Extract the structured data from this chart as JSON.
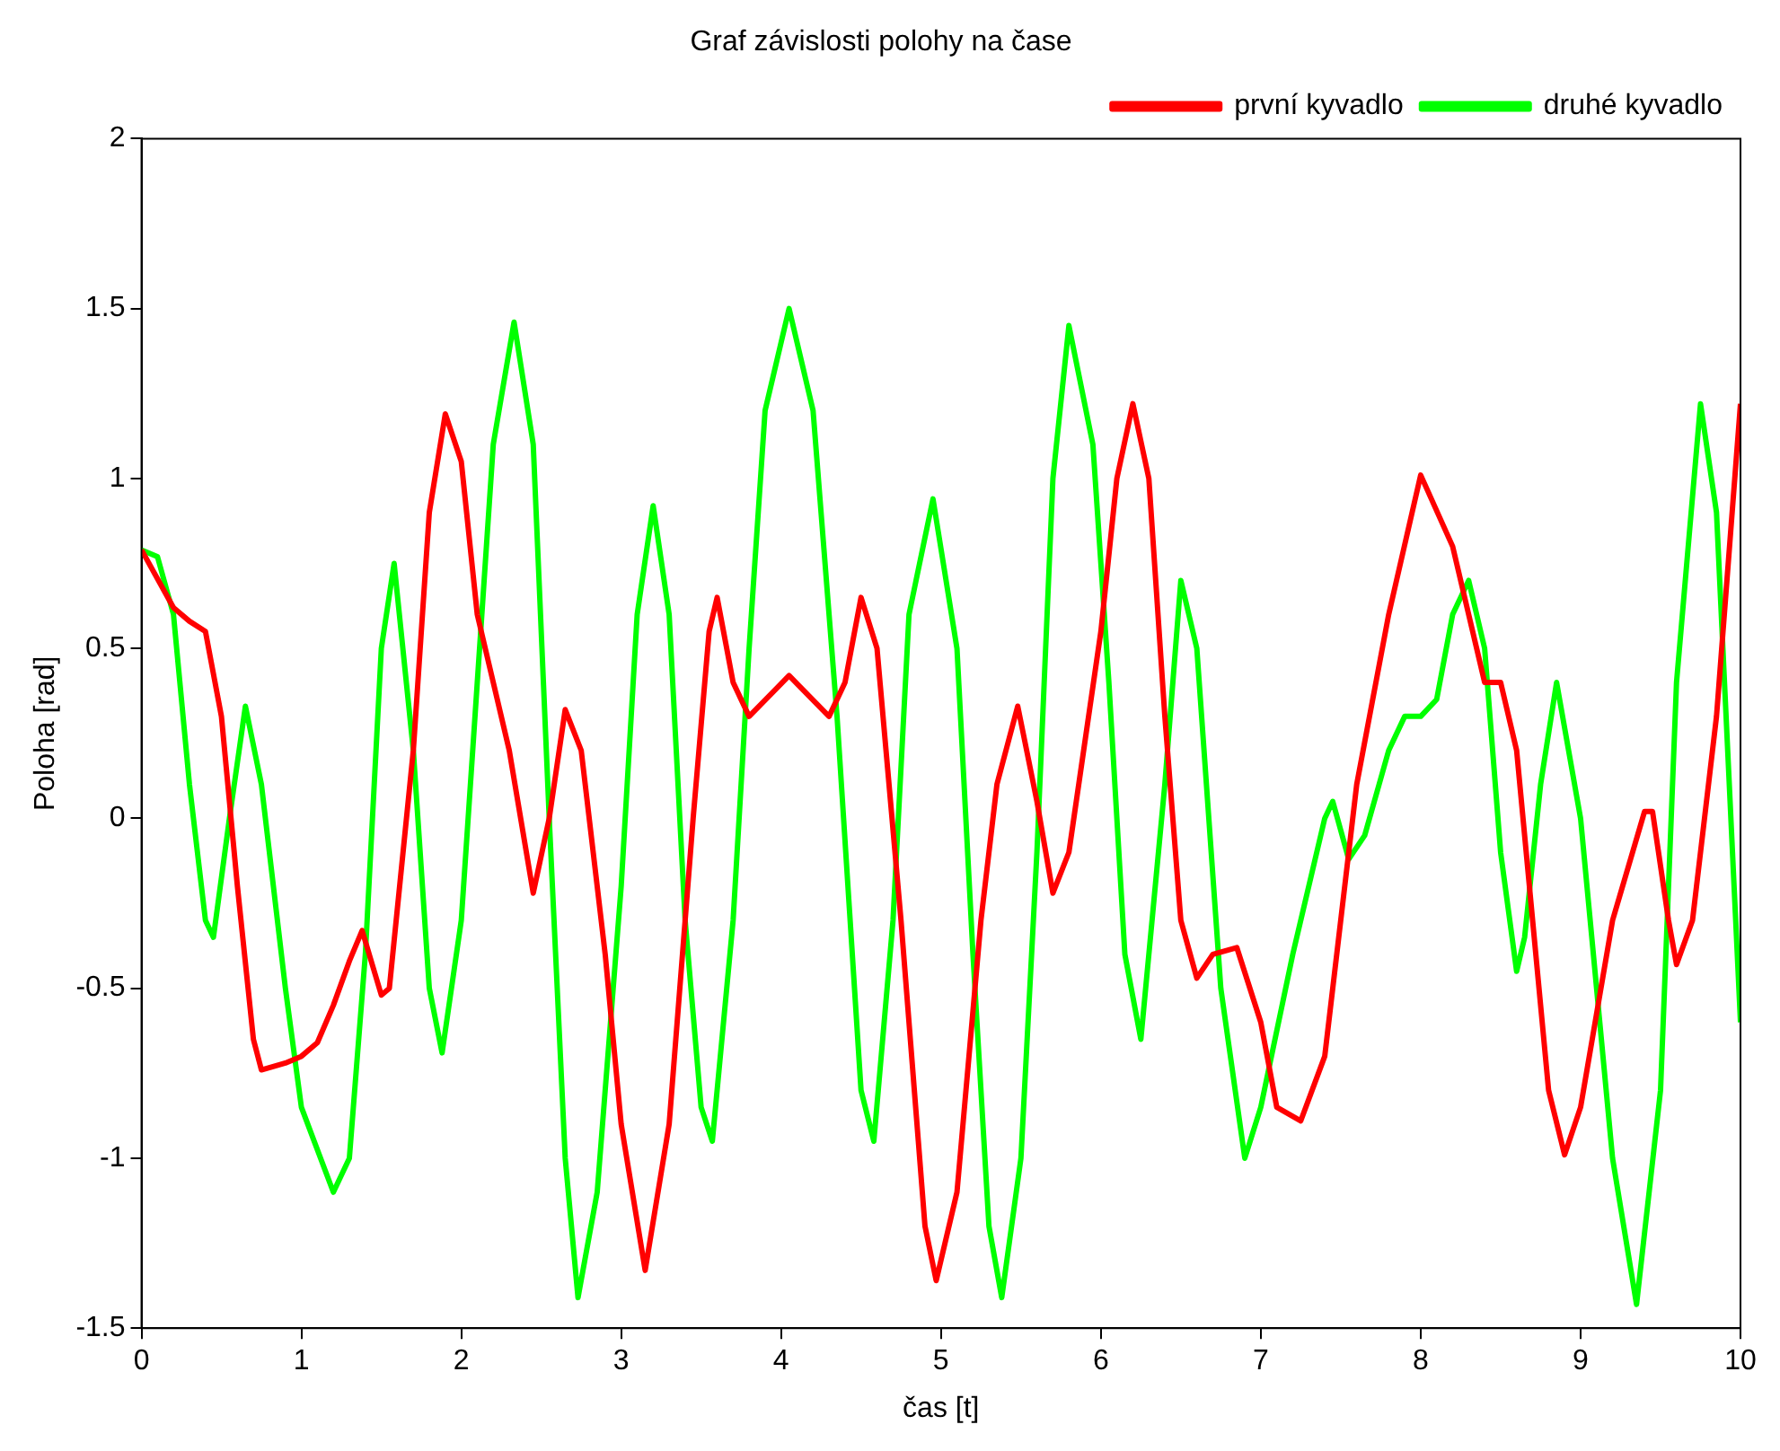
{
  "chart_data": {
    "type": "line",
    "title": "Graf závislosti polohy na čase",
    "xlabel": "čas [t]",
    "ylabel": "Poloha [rad]",
    "xlim": [
      0,
      10
    ],
    "ylim": [
      -1.5,
      2
    ],
    "xticks": [
      0,
      1,
      2,
      3,
      4,
      5,
      6,
      7,
      8,
      9,
      10
    ],
    "yticks": [
      -1.5,
      -1,
      -0.5,
      0,
      0.5,
      1,
      1.5,
      2
    ],
    "grid": false,
    "legend": "top right",
    "marker": "none",
    "line_style": "solid",
    "series": [
      {
        "name": "první kyvadlo",
        "color": "#ff0000",
        "x": [
          0,
          0.2,
          0.3,
          0.4,
          0.5,
          0.6,
          0.7,
          0.75,
          0.9,
          1.0,
          1.1,
          1.2,
          1.3,
          1.38,
          1.5,
          1.55,
          1.7,
          1.8,
          1.9,
          2.0,
          2.1,
          2.3,
          2.45,
          2.55,
          2.65,
          2.75,
          2.9,
          3.0,
          3.15,
          3.3,
          3.45,
          3.55,
          3.6,
          3.7,
          3.8,
          4.05,
          4.3,
          4.4,
          4.5,
          4.6,
          4.75,
          4.9,
          4.97,
          5.1,
          5.25,
          5.35,
          5.48,
          5.6,
          5.7,
          5.8,
          6.0,
          6.1,
          6.2,
          6.3,
          6.4,
          6.5,
          6.6,
          6.7,
          6.85,
          7.0,
          7.1,
          7.25,
          7.4,
          7.6,
          7.8,
          8.0,
          8.2,
          8.4,
          8.5,
          8.6,
          8.8,
          8.9,
          9.0,
          9.2,
          9.4,
          9.45,
          9.55,
          9.6,
          9.7,
          9.85,
          10.0
        ],
        "values": [
          0.79,
          0.62,
          0.58,
          0.55,
          0.3,
          -0.2,
          -0.65,
          -0.74,
          -0.72,
          -0.7,
          -0.66,
          -0.55,
          -0.42,
          -0.33,
          -0.52,
          -0.5,
          0.2,
          0.9,
          1.19,
          1.05,
          0.6,
          0.2,
          -0.22,
          0.0,
          0.32,
          0.2,
          -0.4,
          -0.9,
          -1.33,
          -0.9,
          0.0,
          0.55,
          0.65,
          0.4,
          0.3,
          0.42,
          0.3,
          0.4,
          0.65,
          0.5,
          -0.3,
          -1.2,
          -1.36,
          -1.1,
          -0.3,
          0.1,
          0.33,
          0.05,
          -0.22,
          -0.1,
          0.55,
          1.0,
          1.22,
          1.0,
          0.3,
          -0.3,
          -0.47,
          -0.4,
          -0.38,
          -0.6,
          -0.85,
          -0.89,
          -0.7,
          0.1,
          0.6,
          1.01,
          0.8,
          0.4,
          0.4,
          0.2,
          -0.8,
          -0.99,
          -0.85,
          -0.3,
          0.02,
          0.02,
          -0.3,
          -0.43,
          -0.3,
          0.3,
          1.22
        ]
      },
      {
        "name": "druhé kyvadlo",
        "color": "#00ff00",
        "x": [
          0,
          0.1,
          0.2,
          0.3,
          0.4,
          0.45,
          0.55,
          0.65,
          0.75,
          0.9,
          1.0,
          1.2,
          1.3,
          1.4,
          1.5,
          1.58,
          1.7,
          1.8,
          1.88,
          2.0,
          2.1,
          2.2,
          2.33,
          2.45,
          2.55,
          2.65,
          2.73,
          2.85,
          3.0,
          3.1,
          3.2,
          3.3,
          3.4,
          3.5,
          3.57,
          3.7,
          3.8,
          3.9,
          4.05,
          4.2,
          4.35,
          4.5,
          4.58,
          4.7,
          4.8,
          4.95,
          5.1,
          5.2,
          5.3,
          5.38,
          5.5,
          5.6,
          5.7,
          5.8,
          5.95,
          6.05,
          6.15,
          6.25,
          6.4,
          6.5,
          6.6,
          6.75,
          6.9,
          7.0,
          7.2,
          7.4,
          7.45,
          7.55,
          7.65,
          7.8,
          7.9,
          8.0,
          8.1,
          8.2,
          8.3,
          8.4,
          8.5,
          8.6,
          8.65,
          8.75,
          8.85,
          9.0,
          9.2,
          9.35,
          9.5,
          9.6,
          9.75,
          9.85,
          10.0
        ],
        "values": [
          0.79,
          0.77,
          0.6,
          0.1,
          -0.3,
          -0.35,
          0.0,
          0.33,
          0.1,
          -0.5,
          -0.85,
          -1.1,
          -1.0,
          -0.4,
          0.5,
          0.75,
          0.2,
          -0.5,
          -0.69,
          -0.3,
          0.4,
          1.1,
          1.46,
          1.1,
          0.0,
          -1.0,
          -1.41,
          -1.1,
          -0.2,
          0.6,
          0.92,
          0.6,
          -0.3,
          -0.85,
          -0.95,
          -0.3,
          0.5,
          1.2,
          1.5,
          1.2,
          0.3,
          -0.8,
          -0.95,
          -0.3,
          0.6,
          0.94,
          0.5,
          -0.4,
          -1.2,
          -1.41,
          -1.0,
          -0.1,
          1.0,
          1.45,
          1.1,
          0.4,
          -0.4,
          -0.65,
          0.1,
          0.7,
          0.5,
          -0.5,
          -1.0,
          -0.85,
          -0.4,
          0.0,
          0.05,
          -0.12,
          -0.05,
          0.2,
          0.3,
          0.3,
          0.35,
          0.6,
          0.7,
          0.5,
          -0.1,
          -0.45,
          -0.35,
          0.1,
          0.4,
          0.0,
          -1.0,
          -1.43,
          -0.8,
          0.4,
          1.22,
          0.9,
          -0.6
        ]
      }
    ]
  }
}
